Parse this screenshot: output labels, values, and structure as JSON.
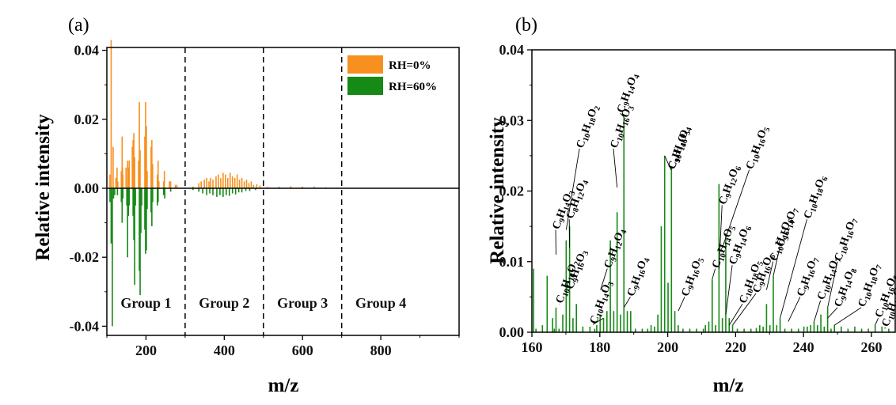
{
  "chart_data": [
    {
      "type": "bar",
      "panel_label": "(a)",
      "xlabel": "m/z",
      "ylabel": "Relative intensity",
      "xlim": [
        100,
        1000
      ],
      "ylim": [
        -0.045,
        0.05
      ],
      "xticks": [
        200,
        400,
        600,
        800
      ],
      "yticks": [
        0.04,
        0.02,
        0.0,
        -0.02,
        -0.04
      ],
      "ytick_labels": [
        "0.04",
        "0.02",
        "0.00",
        "-0.02",
        "-0.04"
      ],
      "group_boundaries": [
        300,
        500,
        700
      ],
      "groups": [
        "Group 1",
        "Group 2",
        "Group 3",
        "Group 4"
      ],
      "legend": {
        "position": "top-right",
        "entries": [
          {
            "label": "RH=0%",
            "color": "#F7901E"
          },
          {
            "label": "RH=60%",
            "color": "#168A16"
          }
        ]
      },
      "series": [
        {
          "name": "RH=0%",
          "color": "#F7901E",
          "direction": "up",
          "points": [
            [
              108,
              0.004
            ],
            [
              111,
              0.043
            ],
            [
              116,
              0.012
            ],
            [
              123,
              0.003
            ],
            [
              126,
              0.006
            ],
            [
              128,
              0.002
            ],
            [
              137,
              0.005
            ],
            [
              139,
              0.015
            ],
            [
              140,
              0.006
            ],
            [
              141,
              0.004
            ],
            [
              149,
              0.006
            ],
            [
              153,
              0.008
            ],
            [
              155,
              0.006
            ],
            [
              157,
              0.008
            ],
            [
              165,
              0.012
            ],
            [
              167,
              0.014
            ],
            [
              169,
              0.016
            ],
            [
              171,
              0.009
            ],
            [
              181,
              0.008
            ],
            [
              183,
              0.025
            ],
            [
              185,
              0.011
            ],
            [
              197,
              0.015
            ],
            [
              199,
              0.025
            ],
            [
              201,
              0.018
            ],
            [
              203,
              0.005
            ],
            [
              213,
              0.012
            ],
            [
              215,
              0.014
            ],
            [
              217,
              0.007
            ],
            [
              229,
              0.004
            ],
            [
              231,
              0.008
            ],
            [
              233,
              0.002
            ],
            [
              245,
              0.002
            ],
            [
              247,
              0.005
            ],
            [
              260,
              0.002
            ],
            [
              263,
              0.002
            ],
            [
              275,
              0.001
            ],
            [
              279,
              0.001
            ],
            [
              320,
              0.0005
            ],
            [
              335,
              0.0015
            ],
            [
              341,
              0.002
            ],
            [
              349,
              0.0025
            ],
            [
              355,
              0.003
            ],
            [
              361,
              0.002
            ],
            [
              365,
              0.003
            ],
            [
              371,
              0.0025
            ],
            [
              379,
              0.0035
            ],
            [
              385,
              0.004
            ],
            [
              391,
              0.003
            ],
            [
              397,
              0.0045
            ],
            [
              403,
              0.004
            ],
            [
              409,
              0.003
            ],
            [
              415,
              0.0045
            ],
            [
              421,
              0.0035
            ],
            [
              427,
              0.003
            ],
            [
              433,
              0.004
            ],
            [
              439,
              0.0025
            ],
            [
              445,
              0.003
            ],
            [
              451,
              0.002
            ],
            [
              457,
              0.0025
            ],
            [
              463,
              0.0015
            ],
            [
              469,
              0.002
            ],
            [
              475,
              0.001
            ],
            [
              483,
              0.0012
            ],
            [
              491,
              0.0008
            ],
            [
              510,
              0.0004
            ],
            [
              540,
              0.0005
            ],
            [
              570,
              0.0006
            ],
            [
              600,
              0.0005
            ],
            [
              630,
              0.0005
            ],
            [
              660,
              0.0003
            ],
            [
              690,
              0.0002
            ]
          ]
        },
        {
          "name": "RH=60%",
          "color": "#168A16",
          "direction": "down",
          "points": [
            [
              108,
              0.004
            ],
            [
              111,
              0.016
            ],
            [
              114,
              0.04
            ],
            [
              117,
              0.003
            ],
            [
              120,
              0.002
            ],
            [
              127,
              0.002
            ],
            [
              137,
              0.004
            ],
            [
              139,
              0.01
            ],
            [
              141,
              0.003
            ],
            [
              151,
              0.005
            ],
            [
              153,
              0.02
            ],
            [
              155,
              0.008
            ],
            [
              157,
              0.005
            ],
            [
              167,
              0.008
            ],
            [
              169,
              0.015
            ],
            [
              171,
              0.028
            ],
            [
              173,
              0.005
            ],
            [
              183,
              0.024
            ],
            [
              185,
              0.031
            ],
            [
              187,
              0.013
            ],
            [
              189,
              0.005
            ],
            [
              197,
              0.012
            ],
            [
              199,
              0.019
            ],
            [
              201,
              0.018
            ],
            [
              203,
              0.006
            ],
            [
              213,
              0.007
            ],
            [
              215,
              0.011
            ],
            [
              217,
              0.004
            ],
            [
              229,
              0.005
            ],
            [
              231,
              0.004
            ],
            [
              245,
              0.002
            ],
            [
              248,
              0.003
            ],
            [
              263,
              0.001
            ],
            [
              320,
              0.0005
            ],
            [
              335,
              0.001
            ],
            [
              345,
              0.0015
            ],
            [
              355,
              0.002
            ],
            [
              363,
              0.0015
            ],
            [
              371,
              0.002
            ],
            [
              381,
              0.0025
            ],
            [
              389,
              0.002
            ],
            [
              397,
              0.0025
            ],
            [
              405,
              0.002
            ],
            [
              413,
              0.0022
            ],
            [
              421,
              0.0015
            ],
            [
              429,
              0.0018
            ],
            [
              437,
              0.0012
            ],
            [
              445,
              0.0012
            ],
            [
              455,
              0.0008
            ],
            [
              465,
              0.0008
            ],
            [
              480,
              0.0005
            ]
          ]
        }
      ]
    },
    {
      "type": "bar",
      "panel_label": "(b)",
      "xlabel": "m/z",
      "ylabel": "Relative intensity",
      "xlim": [
        160,
        267
      ],
      "ylim": [
        0,
        0.04
      ],
      "xticks": [
        160,
        180,
        200,
        220,
        240,
        260
      ],
      "yticks": [
        0.0,
        0.01,
        0.02,
        0.03,
        0.04
      ],
      "ytick_labels": [
        "0.00",
        "0.01",
        "0.02",
        "0.03",
        "0.04"
      ],
      "color": "#168A16",
      "points": [
        [
          160.5,
          0.009
        ],
        [
          161.2,
          0.0005
        ],
        [
          163.1,
          0.001
        ],
        [
          164.5,
          0.008
        ],
        [
          166.1,
          0.002
        ],
        [
          166.6,
          0.0005
        ],
        [
          167.1,
          0.0035
        ],
        [
          168.0,
          0.0005
        ],
        [
          169.1,
          0.0025
        ],
        [
          170.1,
          0.013
        ],
        [
          171.1,
          0.015
        ],
        [
          172.1,
          0.002
        ],
        [
          173.1,
          0.004
        ],
        [
          175.0,
          0.0008
        ],
        [
          177.1,
          0.0008
        ],
        [
          178.5,
          0.0005
        ],
        [
          179.1,
          0.001
        ],
        [
          180.1,
          0.0025
        ],
        [
          181.1,
          0.002
        ],
        [
          182.1,
          0.003
        ],
        [
          183.1,
          0.013
        ],
        [
          184.1,
          0.003
        ],
        [
          185.1,
          0.017
        ],
        [
          186.1,
          0.0025
        ],
        [
          187.1,
          0.0305
        ],
        [
          188.1,
          0.003
        ],
        [
          189.1,
          0.003
        ],
        [
          190.5,
          0.0005
        ],
        [
          192.5,
          0.0005
        ],
        [
          194.1,
          0.0005
        ],
        [
          195.1,
          0.001
        ],
        [
          196.1,
          0.0008
        ],
        [
          197.1,
          0.0025
        ],
        [
          198.1,
          0.015
        ],
        [
          199.1,
          0.025
        ],
        [
          200.1,
          0.007
        ],
        [
          201.1,
          0.0235
        ],
        [
          202.1,
          0.003
        ],
        [
          203.1,
          0.001
        ],
        [
          204.5,
          0.0005
        ],
        [
          206.5,
          0.0005
        ],
        [
          208.5,
          0.0005
        ],
        [
          210.5,
          0.0005
        ],
        [
          211.1,
          0.001
        ],
        [
          212.1,
          0.0015
        ],
        [
          213.1,
          0.0075
        ],
        [
          214.1,
          0.001
        ],
        [
          215.1,
          0.021
        ],
        [
          216.1,
          0.002
        ],
        [
          217.1,
          0.014
        ],
        [
          218.1,
          0.002
        ],
        [
          219.1,
          0.001
        ],
        [
          220.5,
          0.0005
        ],
        [
          222.5,
          0.0005
        ],
        [
          224.5,
          0.0005
        ],
        [
          226.1,
          0.0006
        ],
        [
          227.1,
          0.001
        ],
        [
          228.1,
          0.0008
        ],
        [
          229.1,
          0.004
        ],
        [
          230.1,
          0.001
        ],
        [
          231.1,
          0.008
        ],
        [
          232.1,
          0.001
        ],
        [
          233.1,
          0.002
        ],
        [
          234.5,
          0.0005
        ],
        [
          236.5,
          0.0005
        ],
        [
          238.5,
          0.0005
        ],
        [
          240.1,
          0.0008
        ],
        [
          241.1,
          0.0008
        ],
        [
          242.1,
          0.001
        ],
        [
          243.1,
          0.0015
        ],
        [
          244.1,
          0.001
        ],
        [
          245.1,
          0.0025
        ],
        [
          246.1,
          0.0008
        ],
        [
          247.1,
          0.0035
        ],
        [
          248.1,
          0.0005
        ],
        [
          249.1,
          0.001
        ],
        [
          251.1,
          0.0008
        ],
        [
          253.1,
          0.0005
        ],
        [
          255.1,
          0.0008
        ],
        [
          257.1,
          0.0005
        ],
        [
          259.1,
          0.0005
        ],
        [
          261.1,
          0.001
        ],
        [
          263.1,
          0.0008
        ],
        [
          265.1,
          0.0005
        ]
      ],
      "annotations": [
        {
          "formula": "C10H16O2",
          "x": 168.1,
          "y": 0.004,
          "label_x": 168.0,
          "label_y": 0.004
        },
        {
          "formula": "C10H14O3",
          "x": 181.1,
          "y": 0.002,
          "label_x": 178.0,
          "label_y": 0.0011
        },
        {
          "formula": "C9H16O3",
          "x": 170.1,
          "y": 0.006,
          "label_x": 171.0,
          "label_y": 0.006
        },
        {
          "formula": "C9H12O4",
          "x": 180.2,
          "y": 0.006,
          "label_x": 182.2,
          "label_y": 0.009
        },
        {
          "formula": "C9H14O3",
          "x": 167.1,
          "y": 0.011,
          "label_x": 167.0,
          "label_y": 0.0145
        },
        {
          "formula": "C8H12O4",
          "x": 171.1,
          "y": 0.012,
          "label_x": 171.0,
          "label_y": 0.016
        },
        {
          "formula": "C10H18O2",
          "x": 170.1,
          "y": 0.0145,
          "label_x": 174.0,
          "label_y": 0.026
        },
        {
          "formula": "C10H16O3",
          "x": 185.1,
          "y": 0.0205,
          "label_x": 184.0,
          "label_y": 0.026
        },
        {
          "formula": "C9H14O4",
          "x": 187.1,
          "y": 0.0305,
          "label_x": 186.0,
          "label_y": 0.031
        },
        {
          "formula": "C9H16O4",
          "x": 187.1,
          "y": 0.0035,
          "label_x": 189.0,
          "label_y": 0.005
        },
        {
          "formula": "C10H16O4",
          "x": 199.1,
          "y": 0.025,
          "label_x": 201.0,
          "label_y": 0.023
        },
        {
          "formula": "C9H14O5",
          "x": 201.1,
          "y": 0.023,
          "label_x": 201.0,
          "label_y": 0.023
        },
        {
          "formula": "C9H16O5",
          "x": 203.1,
          "y": 0.003,
          "label_x": 205.0,
          "label_y": 0.005
        },
        {
          "formula": "C10H14O5",
          "x": 213.1,
          "y": 0.0075,
          "label_x": 214.0,
          "label_y": 0.009
        },
        {
          "formula": "C9H12O6",
          "x": 215.1,
          "y": 0.009,
          "label_x": 216.0,
          "label_y": 0.018
        },
        {
          "formula": "C10H16O5",
          "x": 216.1,
          "y": 0.012,
          "label_x": 224.0,
          "label_y": 0.023
        },
        {
          "formula": "C9H14O6",
          "x": 217.1,
          "y": 0.0025,
          "label_x": 219.0,
          "label_y": 0.0095
        },
        {
          "formula": "C10H18O5",
          "x": 218.1,
          "y": 0.001,
          "label_x": 222.0,
          "label_y": 0.004
        },
        {
          "formula": "C9H16O6",
          "x": 219.1,
          "y": 0.001,
          "label_x": 226.0,
          "label_y": 0.0055
        },
        {
          "formula": "C10H16O6",
          "x": 229.1,
          "y": 0.006,
          "label_x": 231.0,
          "label_y": 0.01
        },
        {
          "formula": "C9H14O7",
          "x": 231.1,
          "y": 0.008,
          "label_x": 233.0,
          "label_y": 0.012
        },
        {
          "formula": "C10H18O6",
          "x": 233.1,
          "y": 0.002,
          "label_x": 241.0,
          "label_y": 0.016
        },
        {
          "formula": "C9H16O7",
          "x": 235.5,
          "y": 0.0015,
          "label_x": 239.0,
          "label_y": 0.005
        },
        {
          "formula": "C10H14O7",
          "x": 243.1,
          "y": 0.0015,
          "label_x": 245.0,
          "label_y": 0.0045
        },
        {
          "formula": "C10H16O7",
          "x": 247.1,
          "y": 0.0035,
          "label_x": 250.0,
          "label_y": 0.01
        },
        {
          "formula": "C9H14O8",
          "x": 247.1,
          "y": 0.002,
          "label_x": 250.0,
          "label_y": 0.0035
        },
        {
          "formula": "C10H18O7",
          "x": 249.1,
          "y": 0.001,
          "label_x": 257.0,
          "label_y": 0.0035
        },
        {
          "formula": "C10H16O8",
          "x": 261.1,
          "y": 0.001,
          "label_x": 262.0,
          "label_y": 0.002
        },
        {
          "formula": "C10H18O8",
          "x": 264.0,
          "y": 0.0005,
          "label_x": 264.0,
          "label_y": 0.0007
        }
      ]
    }
  ]
}
